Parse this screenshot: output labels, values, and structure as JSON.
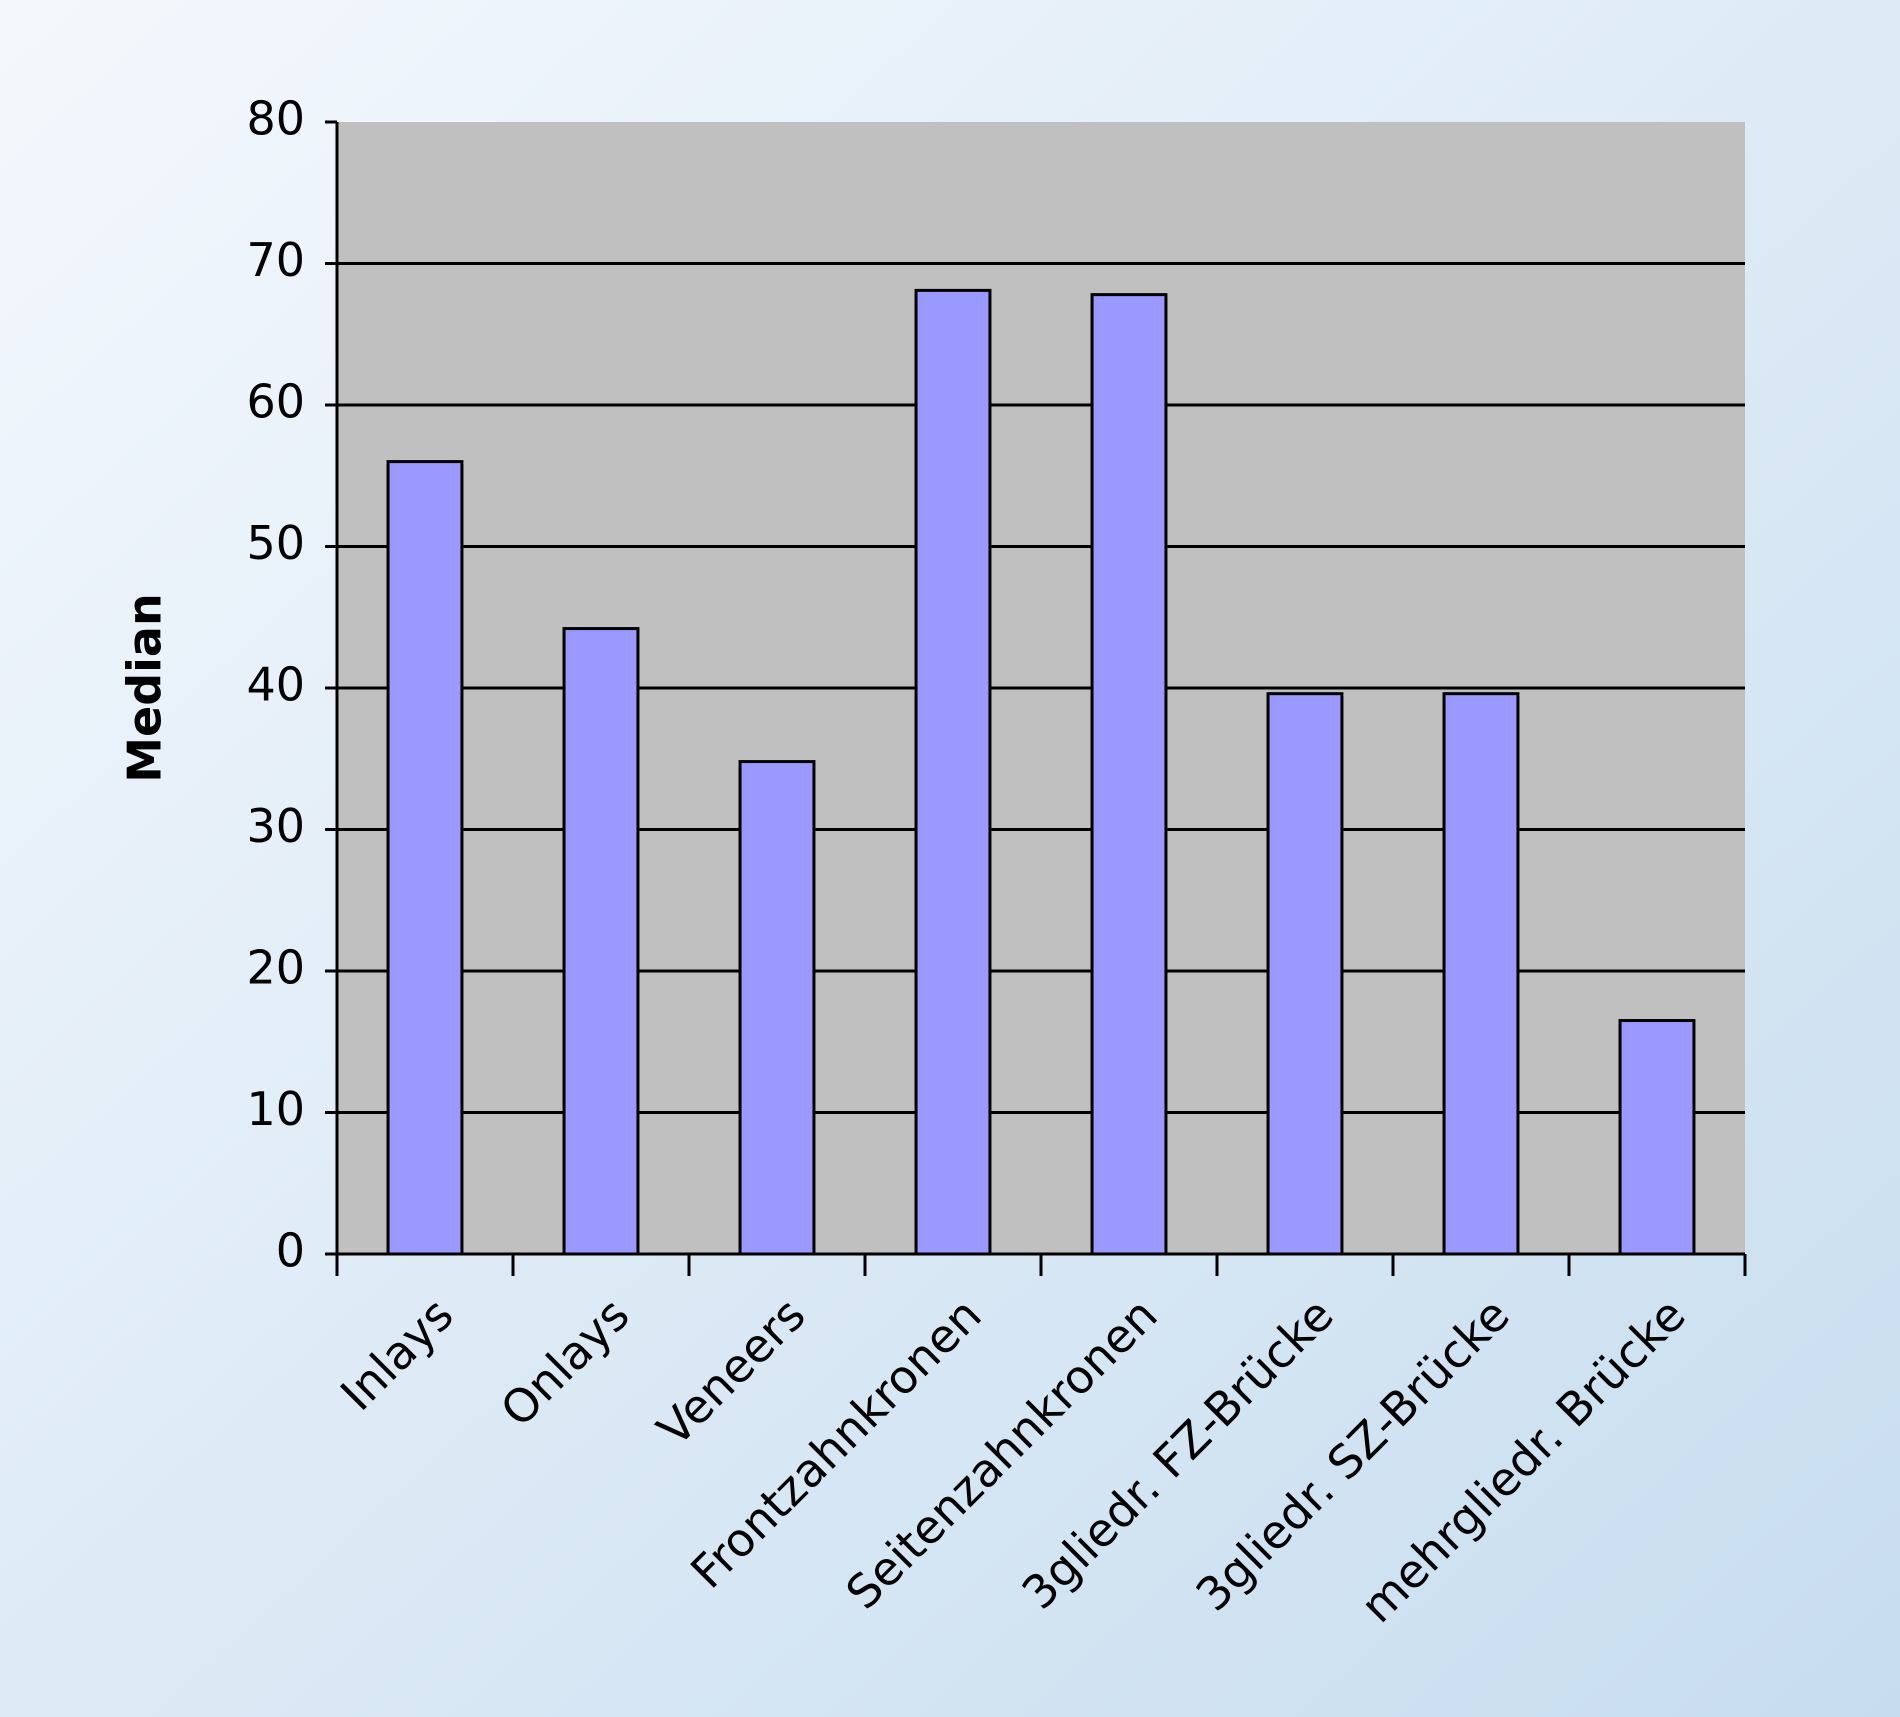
{
  "chart_data": {
    "type": "bar",
    "y_label": "Median",
    "categories": [
      "Inlays",
      "Onlays",
      "Veneers",
      "Frontzahnkronen",
      "Seitenzahnkronen",
      "3gliedr. FZ-Brücke",
      "3gliedr. SZ-Brücke",
      "mehrgliedr. Brücke"
    ],
    "values": [
      56.0,
      44.2,
      34.8,
      68.1,
      67.8,
      39.6,
      39.6,
      16.5
    ],
    "color": "#9999ff",
    "ylim": [
      0,
      80
    ],
    "yticks": [
      0,
      10,
      20,
      30,
      40,
      50,
      60,
      70,
      80
    ],
    "grid": true
  }
}
